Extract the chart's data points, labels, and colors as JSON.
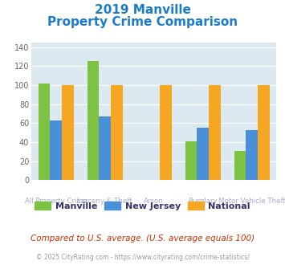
{
  "title_line1": "2019 Manville",
  "title_line2": "Property Crime Comparison",
  "categories": [
    "All Property Crime",
    "Larceny & Theft",
    "Arson",
    "Burglary",
    "Motor Vehicle Theft"
  ],
  "cat_labels_line1": [
    "",
    "Larceny & Theft",
    "",
    "Burglary",
    ""
  ],
  "cat_labels_line2": [
    "All Property Crime",
    "",
    "Arson",
    "",
    "Motor Vehicle Theft"
  ],
  "manville": [
    102,
    125,
    0,
    41,
    31
  ],
  "new_jersey": [
    63,
    67,
    0,
    55,
    53
  ],
  "national": [
    100,
    100,
    100,
    100,
    100
  ],
  "color_manville": "#7dc242",
  "color_nj": "#4a90d9",
  "color_national": "#f5a623",
  "ylim": [
    0,
    145
  ],
  "yticks": [
    0,
    20,
    40,
    60,
    80,
    100,
    120,
    140
  ],
  "plot_bg": "#dce9f0",
  "legend_label_manville": "Manville",
  "legend_label_nj": "New Jersey",
  "legend_label_national": "National",
  "footnote": "Compared to U.S. average. (U.S. average equals 100)",
  "copyright": "© 2025 CityRating.com - https://www.cityrating.com/crime-statistics/",
  "title_color": "#1a7cc9",
  "label_color": "#aaaacc",
  "legend_text_color": "#333366",
  "footnote_color": "#cc3300",
  "copyright_color": "#999999"
}
